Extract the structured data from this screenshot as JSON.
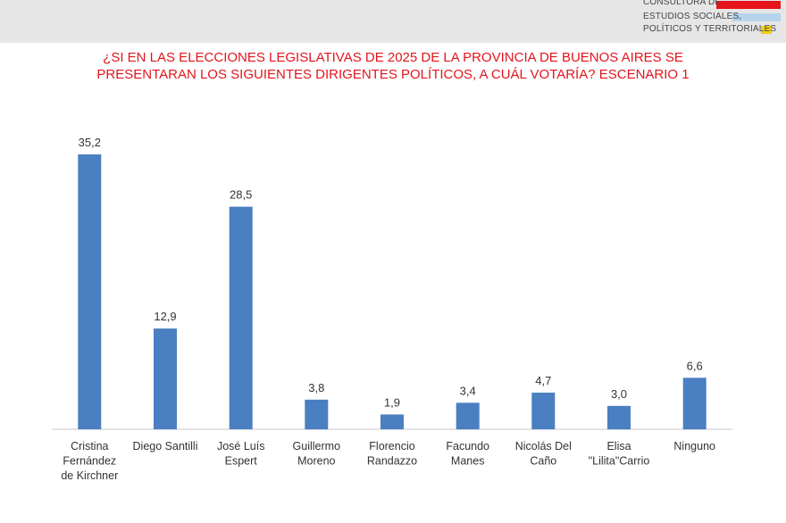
{
  "header": {
    "logo_lines": [
      "CONSULTORA DE",
      "ESTUDIOS SOCIALES,",
      "POLÍTICOS Y TERRITORIALES"
    ],
    "stripe_colors": [
      "#e8141c",
      "#b6d4ee",
      "#f3cd17"
    ]
  },
  "chart_data": {
    "type": "bar",
    "title": "¿SI EN LAS ELECCIONES LEGISLATIVAS DE 2025 DE LA PROVINCIA DE BUENOS AIRES SE PRESENTARAN LOS SIGUIENTES DIRIGENTES POLÍTICOS, A CUÁL VOTARÍA? ESCENARIO 1",
    "title_lines": [
      "¿SI EN LAS ELECCIONES LEGISLATIVAS DE 2025 DE LA PROVINCIA DE BUENOS AIRES SE",
      "PRESENTARAN LOS SIGUIENTES DIRIGENTES POLÍTICOS, A CUÁL VOTARÍA? ESCENARIO 1"
    ],
    "categories": [
      "Cristina Fernández de Kirchner",
      "Diego Santilli",
      "José Luís Espert",
      "Guillermo Moreno",
      "Florencio Randazzo",
      "Facundo Manes",
      "Nicolás Del Caño",
      "Elisa \"Lilita\"Carrio",
      "Ninguno"
    ],
    "category_lines": [
      [
        "Cristina",
        "Fernández",
        "de Kirchner"
      ],
      [
        "Diego Santilli"
      ],
      [
        "José Luís",
        "Espert"
      ],
      [
        "Guillermo",
        "Moreno"
      ],
      [
        "Florencio",
        "Randazzo"
      ],
      [
        "Facundo",
        "Manes"
      ],
      [
        "Nicolás Del",
        "Caño"
      ],
      [
        "Elisa",
        "\"Lilita\"Carrio"
      ],
      [
        "Ninguno"
      ]
    ],
    "values": [
      35.2,
      12.9,
      28.5,
      3.8,
      1.9,
      3.4,
      4.7,
      3.0,
      6.6
    ],
    "data_labels": [
      "35,2",
      "12,9",
      "28,5",
      "3,8",
      "1,9",
      "3,4",
      "4,7",
      "3,0",
      "6,6"
    ],
    "ylim": [
      0,
      35.2
    ],
    "bar_color": "#4a7fc1",
    "grid": false,
    "legend": "none"
  }
}
